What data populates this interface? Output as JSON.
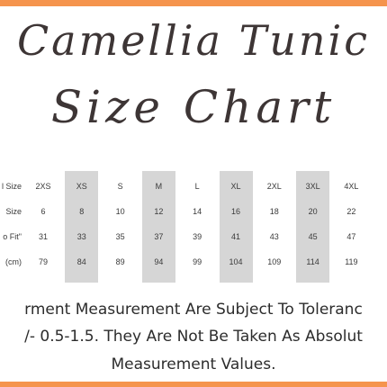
{
  "title": {
    "line1": "Camellia Tunic",
    "line2": "Size Chart"
  },
  "table": {
    "row_labels": [
      "l Size",
      "Size",
      "o Fit\"",
      "(cm)"
    ],
    "columns": [
      {
        "header": "2XS",
        "values": [
          "6",
          "31",
          "79"
        ],
        "shaded": false
      },
      {
        "header": "XS",
        "values": [
          "8",
          "33",
          "84"
        ],
        "shaded": true
      },
      {
        "header": "S",
        "values": [
          "10",
          "35",
          "89"
        ],
        "shaded": false
      },
      {
        "header": "M",
        "values": [
          "12",
          "37",
          "94"
        ],
        "shaded": true
      },
      {
        "header": "L",
        "values": [
          "14",
          "39",
          "99"
        ],
        "shaded": false
      },
      {
        "header": "XL",
        "values": [
          "16",
          "41",
          "104"
        ],
        "shaded": true
      },
      {
        "header": "2XL",
        "values": [
          "18",
          "43",
          "109"
        ],
        "shaded": false
      },
      {
        "header": "3XL",
        "values": [
          "20",
          "45",
          "114"
        ],
        "shaded": true
      },
      {
        "header": "4XL",
        "values": [
          "22",
          "47",
          "119"
        ],
        "shaded": false
      }
    ]
  },
  "note": {
    "line1": "rment Measurement Are Subject To Toleranc",
    "line2": "/- 0.5-1.5. They Are Not  Be Taken As Absolut",
    "line3": "Measurement Values."
  },
  "colors": {
    "accent": "#f5944d",
    "shade": "#d6d6d6",
    "text": "#3a3a3a"
  }
}
